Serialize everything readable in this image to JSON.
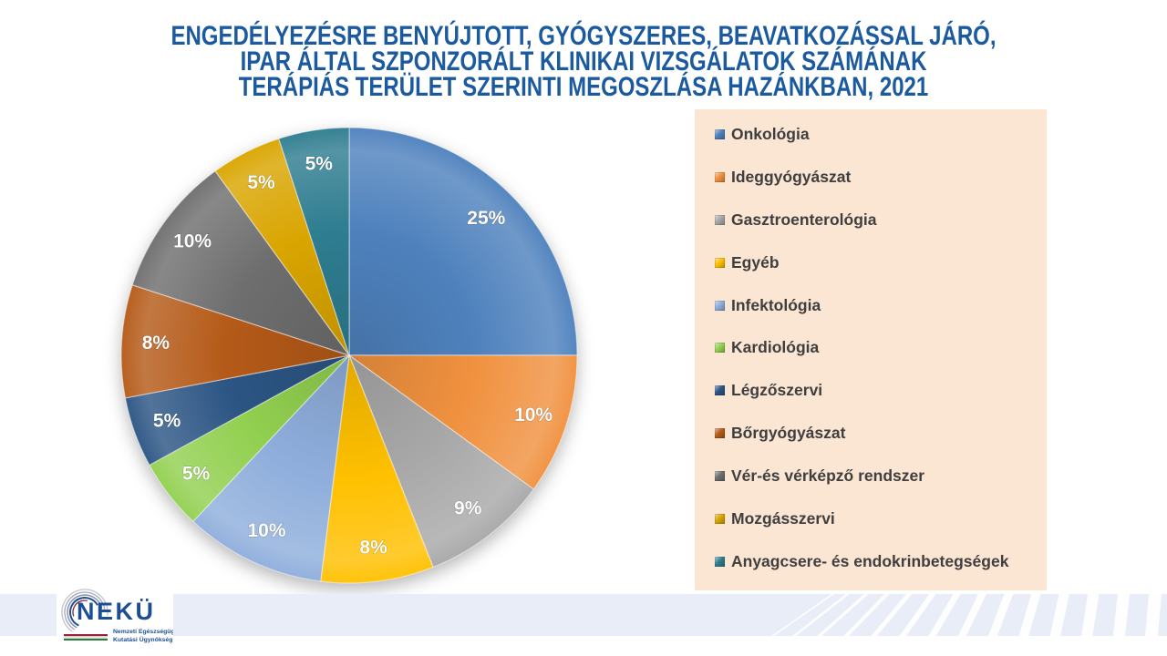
{
  "title": {
    "lines": [
      "ENGEDÉLYEZÉSRE BENYÚJTOTT, GYÓGYSZERES, BEAVATKOZÁSSAL JÁRÓ,",
      "IPAR ÁLTAL SZPONZORÁLT KLINIKAI VIZSGÁLATOK SZÁMÁNAK",
      "TERÁPIÁS TERÜLET SZERINTI MEGOSZLÁSA HAZÁNKBAN, 2021"
    ],
    "color": "#1B5A9E"
  },
  "chart_data": {
    "type": "pie",
    "title": "Engedélyezésre benyújtott, gyógyszeres, beavatkozással járó, ipar által szponzorált klinikai vizsgálatok számának terápiás terület szerinti megoszlása hazánkban, 2021",
    "unit": "percent",
    "start_angle_deg": 0,
    "direction": "clockwise",
    "legend_position": "right",
    "legend_background": "#FBE5D3",
    "data_label_style": "white bold percent inside-end",
    "slices": [
      {
        "label": "Onkológia",
        "value": 25,
        "display": "25%",
        "color": "#4E81BD"
      },
      {
        "label": "Ideggyógyászat",
        "value": 10,
        "display": "10%",
        "color": "#F0913F"
      },
      {
        "label": "Gasztroenterológia",
        "value": 9,
        "display": "9%",
        "color": "#A8A8A8"
      },
      {
        "label": "Egyéb",
        "value": 8,
        "display": "8%",
        "color": "#FFC000"
      },
      {
        "label": "Infektológia",
        "value": 10,
        "display": "10%",
        "color": "#8FAEDC"
      },
      {
        "label": "Kardiológia",
        "value": 5,
        "display": "5%",
        "color": "#92D050"
      },
      {
        "label": "Légzőszervi",
        "value": 5,
        "display": "5%",
        "color": "#2C5584"
      },
      {
        "label": "Bőrgyógyászat",
        "value": 8,
        "display": "8%",
        "color": "#B55A18"
      },
      {
        "label": "Vér-és vérképző rendszer",
        "value": 10,
        "display": "10%",
        "color": "#6E6E6E"
      },
      {
        "label": "Mozgásszervi",
        "value": 5,
        "display": "5%",
        "color": "#D9A500"
      },
      {
        "label": "Anyagcsere- és endokrinbetegségek",
        "value": 5,
        "display": "5%",
        "color": "#2E7D90"
      }
    ]
  },
  "footer": {
    "band_color": "#E9EDF8",
    "logo": {
      "name": "NEKÜ",
      "subtitle_line1": "Nemzeti Egészségügyi",
      "subtitle_line2": "Kutatási Ügynökség"
    }
  }
}
